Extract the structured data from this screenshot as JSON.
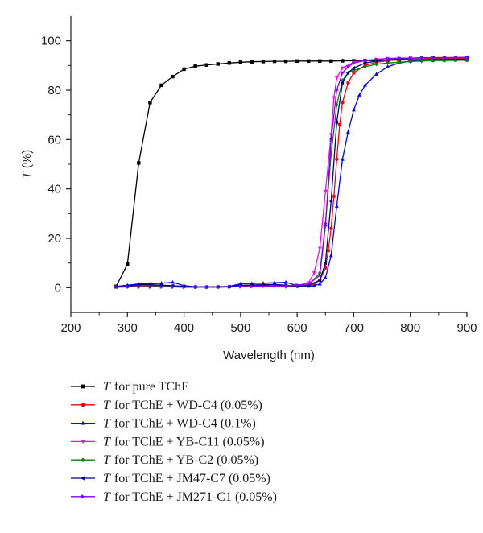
{
  "chart_data": {
    "type": "line",
    "xlabel": "Wavelength (nm)",
    "ylabel": {
      "symbol": "T",
      "unit": "(%)"
    },
    "xlim": [
      200,
      900
    ],
    "ylim": [
      -10,
      110
    ],
    "xticks": [
      200,
      300,
      400,
      500,
      600,
      700,
      800,
      900
    ],
    "yticks": [
      0,
      20,
      40,
      60,
      80,
      100
    ],
    "grid": false,
    "legend_position": "bottom",
    "series": [
      {
        "name": "T for pure TChE",
        "legend_symbol": "T",
        "legend_rest": "for pure TChE",
        "color": "#000000",
        "marker": "square",
        "points": [
          [
            280,
            0.5
          ],
          [
            300,
            9.5
          ],
          [
            320,
            50.5
          ],
          [
            340,
            75
          ],
          [
            360,
            82
          ],
          [
            380,
            85.5
          ],
          [
            400,
            88.5
          ],
          [
            420,
            89.7
          ],
          [
            440,
            90.2
          ],
          [
            460,
            90.6
          ],
          [
            480,
            91.0
          ],
          [
            500,
            91.3
          ],
          [
            520,
            91.5
          ],
          [
            540,
            91.6
          ],
          [
            560,
            91.7
          ],
          [
            580,
            91.7
          ],
          [
            600,
            91.8
          ],
          [
            620,
            91.8
          ],
          [
            640,
            91.8
          ],
          [
            660,
            91.8
          ],
          [
            680,
            91.9
          ],
          [
            700,
            91.9
          ],
          [
            720,
            92.0
          ],
          [
            740,
            92.0
          ],
          [
            760,
            92.1
          ],
          [
            780,
            92.2
          ],
          [
            800,
            92.3
          ],
          [
            820,
            92.4
          ],
          [
            840,
            92.4
          ],
          [
            860,
            92.4
          ],
          [
            880,
            92.5
          ],
          [
            900,
            92.5
          ]
        ]
      },
      {
        "name": "T for TChE + WD-C4 (0.05%)",
        "legend_symbol": "T",
        "legend_rest": "for TChE + WD-C4 (0.05%)",
        "color": "#ff0000",
        "marker": "circle",
        "points": [
          [
            280,
            0.3
          ],
          [
            300,
            0.5
          ],
          [
            320,
            0.7
          ],
          [
            340,
            0.7
          ],
          [
            360,
            0.8
          ],
          [
            380,
            0.6
          ],
          [
            400,
            0.5
          ],
          [
            420,
            0.3
          ],
          [
            440,
            0.2
          ],
          [
            460,
            0.3
          ],
          [
            480,
            0.4
          ],
          [
            500,
            0.7
          ],
          [
            520,
            0.9
          ],
          [
            540,
            1.0
          ],
          [
            560,
            1.1
          ],
          [
            580,
            0.9
          ],
          [
            600,
            0.6
          ],
          [
            620,
            0.8
          ],
          [
            630,
            1.5
          ],
          [
            640,
            3
          ],
          [
            650,
            8
          ],
          [
            655,
            15
          ],
          [
            660,
            24
          ],
          [
            665,
            37
          ],
          [
            670,
            52
          ],
          [
            675,
            66
          ],
          [
            680,
            75
          ],
          [
            690,
            83
          ],
          [
            700,
            87
          ],
          [
            720,
            90
          ],
          [
            740,
            91.3
          ],
          [
            760,
            92
          ],
          [
            780,
            92.4
          ],
          [
            800,
            92.5
          ],
          [
            820,
            92.6
          ],
          [
            840,
            92.8
          ],
          [
            860,
            92.8
          ],
          [
            880,
            92.9
          ],
          [
            900,
            92.9
          ]
        ]
      },
      {
        "name": "T for TChE + WD-C4 (0.1%)",
        "legend_symbol": "T",
        "legend_rest": "for TChE + WD-C4 (0.1%)",
        "color": "#0000ff",
        "marker": "triangle-up",
        "points": [
          [
            280,
            0.5
          ],
          [
            300,
            1.0
          ],
          [
            320,
            1.5
          ],
          [
            340,
            1.5
          ],
          [
            360,
            1.8
          ],
          [
            380,
            2.2
          ],
          [
            400,
            0.8
          ],
          [
            420,
            0.4
          ],
          [
            440,
            0.3
          ],
          [
            460,
            0.4
          ],
          [
            480,
            0.5
          ],
          [
            500,
            1.6
          ],
          [
            520,
            1.7
          ],
          [
            540,
            1.8
          ],
          [
            560,
            2.0
          ],
          [
            580,
            2.2
          ],
          [
            600,
            0.8
          ],
          [
            620,
            0.6
          ],
          [
            630,
            0.8
          ],
          [
            640,
            1.5
          ],
          [
            650,
            4
          ],
          [
            660,
            13
          ],
          [
            670,
            33
          ],
          [
            680,
            52
          ],
          [
            690,
            63
          ],
          [
            700,
            72
          ],
          [
            710,
            78
          ],
          [
            720,
            82
          ],
          [
            740,
            86.5
          ],
          [
            760,
            89.5
          ],
          [
            780,
            91
          ],
          [
            800,
            91.8
          ],
          [
            820,
            92.0
          ],
          [
            840,
            92.1
          ],
          [
            860,
            92.1
          ],
          [
            880,
            92.2
          ],
          [
            900,
            92.2
          ]
        ]
      },
      {
        "name": "T for TChE + YB-C11 (0.05%)",
        "legend_symbol": "T",
        "legend_rest": "for TChE + YB-C11 (0.05%)",
        "color": "#ff00ff",
        "marker": "triangle-down",
        "points": [
          [
            280,
            0.2
          ],
          [
            300,
            0.3
          ],
          [
            320,
            0.3
          ],
          [
            340,
            0.3
          ],
          [
            360,
            0.3
          ],
          [
            380,
            0.3
          ],
          [
            400,
            0.2
          ],
          [
            420,
            0.2
          ],
          [
            440,
            0.2
          ],
          [
            460,
            0.2
          ],
          [
            480,
            0.3
          ],
          [
            500,
            0.4
          ],
          [
            520,
            0.5
          ],
          [
            540,
            0.6
          ],
          [
            560,
            0.7
          ],
          [
            580,
            0.8
          ],
          [
            600,
            0.9
          ],
          [
            620,
            2
          ],
          [
            630,
            6
          ],
          [
            640,
            16
          ],
          [
            650,
            39
          ],
          [
            660,
            62
          ],
          [
            665,
            77
          ],
          [
            670,
            85
          ],
          [
            680,
            89
          ],
          [
            700,
            91.3
          ],
          [
            720,
            92
          ],
          [
            740,
            92.5
          ],
          [
            760,
            92.8
          ],
          [
            780,
            92.9
          ],
          [
            800,
            93.0
          ],
          [
            820,
            93.1
          ],
          [
            840,
            93.1
          ],
          [
            860,
            93.2
          ],
          [
            880,
            93.2
          ],
          [
            900,
            93.2
          ]
        ]
      },
      {
        "name": "T for TChE + YB-C2 (0.05%)",
        "legend_symbol": "T",
        "legend_rest": "for TChE + YB-C2 (0.05%)",
        "color": "#008000",
        "marker": "diamond",
        "points": [
          [
            280,
            0.3
          ],
          [
            300,
            0.4
          ],
          [
            320,
            0.4
          ],
          [
            340,
            0.5
          ],
          [
            360,
            0.5
          ],
          [
            380,
            0.5
          ],
          [
            400,
            0.4
          ],
          [
            420,
            0.3
          ],
          [
            440,
            0.3
          ],
          [
            460,
            0.3
          ],
          [
            480,
            0.4
          ],
          [
            500,
            0.6
          ],
          [
            520,
            0.7
          ],
          [
            540,
            0.8
          ],
          [
            560,
            0.9
          ],
          [
            580,
            0.4
          ],
          [
            600,
            0.5
          ],
          [
            620,
            1
          ],
          [
            640,
            6
          ],
          [
            650,
            26
          ],
          [
            660,
            54
          ],
          [
            670,
            74
          ],
          [
            680,
            84
          ],
          [
            690,
            87
          ],
          [
            700,
            88
          ],
          [
            720,
            89.5
          ],
          [
            740,
            90.5
          ],
          [
            760,
            91
          ],
          [
            780,
            91.3
          ],
          [
            800,
            91.6
          ],
          [
            820,
            91.8
          ],
          [
            840,
            92
          ],
          [
            860,
            92
          ],
          [
            880,
            92.1
          ],
          [
            900,
            92.1
          ]
        ]
      },
      {
        "name": "T for TChE + JM47-C7 (0.05%)",
        "legend_symbol": "T",
        "legend_rest": "for TChE + JM47-C7 (0.05%)",
        "color": "#000080",
        "marker": "triangle-left",
        "points": [
          [
            280,
            0.3
          ],
          [
            300,
            0.6
          ],
          [
            320,
            1.2
          ],
          [
            340,
            1.2
          ],
          [
            360,
            1.0
          ],
          [
            380,
            0.8
          ],
          [
            400,
            0.5
          ],
          [
            420,
            0.3
          ],
          [
            440,
            0.3
          ],
          [
            460,
            0.3
          ],
          [
            480,
            0.4
          ],
          [
            500,
            1.0
          ],
          [
            520,
            1.1
          ],
          [
            540,
            1.2
          ],
          [
            560,
            1.3
          ],
          [
            580,
            1.0
          ],
          [
            600,
            0.6
          ],
          [
            620,
            1.0
          ],
          [
            640,
            3
          ],
          [
            650,
            10
          ],
          [
            660,
            35
          ],
          [
            670,
            67
          ],
          [
            680,
            83
          ],
          [
            690,
            87
          ],
          [
            700,
            89
          ],
          [
            720,
            91
          ],
          [
            740,
            91.8
          ],
          [
            760,
            92.3
          ],
          [
            780,
            92.6
          ],
          [
            800,
            92.9
          ],
          [
            820,
            93.1
          ],
          [
            840,
            93.2
          ],
          [
            860,
            93.2
          ],
          [
            880,
            93.2
          ],
          [
            900,
            93.3
          ]
        ]
      },
      {
        "name": "T for TChE + JM271-C1 (0.05%)",
        "legend_symbol": "T",
        "legend_rest": "for TChE + JM271-C1 (0.05%)",
        "color": "#8000ff",
        "marker": "triangle-right",
        "points": [
          [
            280,
            0.2
          ],
          [
            300,
            0.3
          ],
          [
            320,
            0.3
          ],
          [
            340,
            0.3
          ],
          [
            360,
            0.3
          ],
          [
            380,
            0.3
          ],
          [
            400,
            0.2
          ],
          [
            420,
            0.2
          ],
          [
            440,
            0.2
          ],
          [
            460,
            0.2
          ],
          [
            480,
            0.3
          ],
          [
            500,
            0.4
          ],
          [
            520,
            0.5
          ],
          [
            540,
            0.6
          ],
          [
            560,
            0.7
          ],
          [
            580,
            0.8
          ],
          [
            600,
            1.0
          ],
          [
            620,
            1.5
          ],
          [
            640,
            5
          ],
          [
            650,
            25
          ],
          [
            660,
            60
          ],
          [
            670,
            80
          ],
          [
            680,
            87
          ],
          [
            690,
            89.5
          ],
          [
            700,
            91
          ],
          [
            720,
            92
          ],
          [
            740,
            92.5
          ],
          [
            760,
            92.8
          ],
          [
            780,
            93
          ],
          [
            800,
            93
          ],
          [
            820,
            93.1
          ],
          [
            840,
            93.1
          ],
          [
            860,
            93.1
          ],
          [
            880,
            93.2
          ],
          [
            900,
            93.2
          ]
        ]
      }
    ]
  }
}
